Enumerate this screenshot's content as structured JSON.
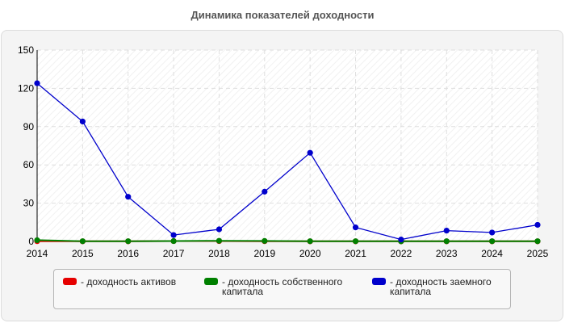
{
  "title": "Динамика показателей доходности",
  "colors": {
    "background": "#ffffff",
    "panel": "#f4f4f4",
    "plot_area": "#ffffff",
    "grid": "#e0e0e0",
    "axis": "#000000"
  },
  "chart_data": {
    "type": "line",
    "title": "Динамика показателей доходности",
    "xlabel": "",
    "ylabel": "",
    "x": [
      "2014",
      "2015",
      "2016",
      "2017",
      "2018",
      "2019",
      "2020",
      "2021",
      "2022",
      "2023",
      "2024",
      "2025"
    ],
    "ylim": [
      0,
      150
    ],
    "yticks": [
      0,
      30,
      60,
      90,
      120,
      150
    ],
    "grid": true,
    "legend_placement": "bottom",
    "series": [
      {
        "name": "- доходность активов",
        "color": "#e60000",
        "values": [
          0.2,
          0.1,
          0.1,
          0.3,
          0.3,
          0.2,
          0.1,
          0.1,
          0.1,
          0.1,
          0.1,
          0.1
        ]
      },
      {
        "name": "- доходность собственного капитала",
        "color": "#008000",
        "values": [
          1,
          0.2,
          0.2,
          0.3,
          0.5,
          0.4,
          0.2,
          0.2,
          0.1,
          0.2,
          0.2,
          0.2
        ]
      },
      {
        "name": "- доходность заемного капитала",
        "color": "#0000cc",
        "values": [
          124,
          94,
          35,
          5,
          9.5,
          39,
          69.5,
          11,
          1.5,
          8.5,
          7,
          13
        ]
      }
    ]
  }
}
